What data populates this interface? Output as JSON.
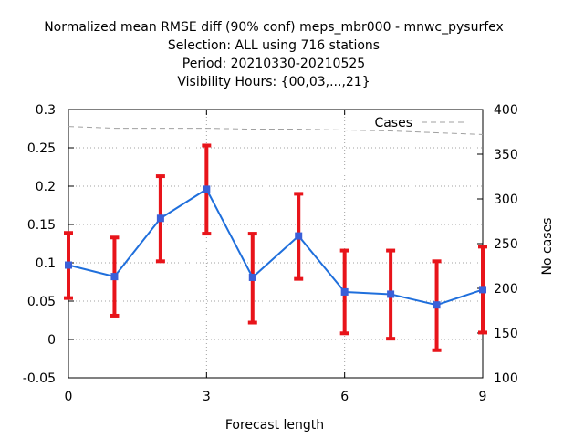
{
  "chart_data": {
    "type": "line",
    "title_lines": [
      "Normalized mean RMSE diff (90% conf) meps_mbr000 - mnwc_pysurfex",
      "Selection: ALL using   716 stations",
      "Period: 20210330-20210525",
      "Visibility   Hours: {00,03,...,21}"
    ],
    "xlabel": "Forecast length",
    "ylabel_right": "No cases",
    "xlim": [
      0,
      9
    ],
    "ylim": [
      -0.05,
      0.3
    ],
    "y2lim": [
      100,
      400
    ],
    "x_ticks": [
      0,
      3,
      6,
      9
    ],
    "y_ticks": [
      -0.05,
      0,
      0.05,
      0.1,
      0.15,
      0.2,
      0.25,
      0.3
    ],
    "y_tick_labels": [
      "-0.05",
      "0",
      "0.05",
      "0.1",
      "0.15",
      "0.2",
      "0.25",
      "0.3"
    ],
    "y2_ticks": [
      100,
      150,
      200,
      250,
      300,
      350,
      400
    ],
    "grid": true,
    "legend": {
      "position": "top-right",
      "entries": [
        "Cases"
      ]
    },
    "series": [
      {
        "kind": "line-errorbar",
        "color": "#1f6fdc",
        "error_color": "#e8141a",
        "x": [
          0,
          1,
          2,
          3,
          4,
          5,
          6,
          7,
          8,
          9
        ],
        "values": [
          0.097,
          0.082,
          0.158,
          0.196,
          0.081,
          0.135,
          0.062,
          0.059,
          0.045,
          0.065
        ],
        "lower": [
          0.054,
          0.031,
          0.102,
          0.138,
          0.022,
          0.079,
          0.008,
          0.001,
          -0.014,
          0.009
        ],
        "upper": [
          0.139,
          0.133,
          0.213,
          0.253,
          0.138,
          0.19,
          0.116,
          0.116,
          0.102,
          0.121
        ]
      },
      {
        "name": "Cases",
        "kind": "dashed-line",
        "axis": "right",
        "color": "#a0a0a0",
        "x": [
          0,
          1,
          2,
          3,
          4,
          5,
          6,
          7,
          8,
          9
        ],
        "values": [
          381,
          379,
          379,
          379,
          378,
          378,
          377,
          376,
          374,
          372
        ]
      }
    ]
  }
}
